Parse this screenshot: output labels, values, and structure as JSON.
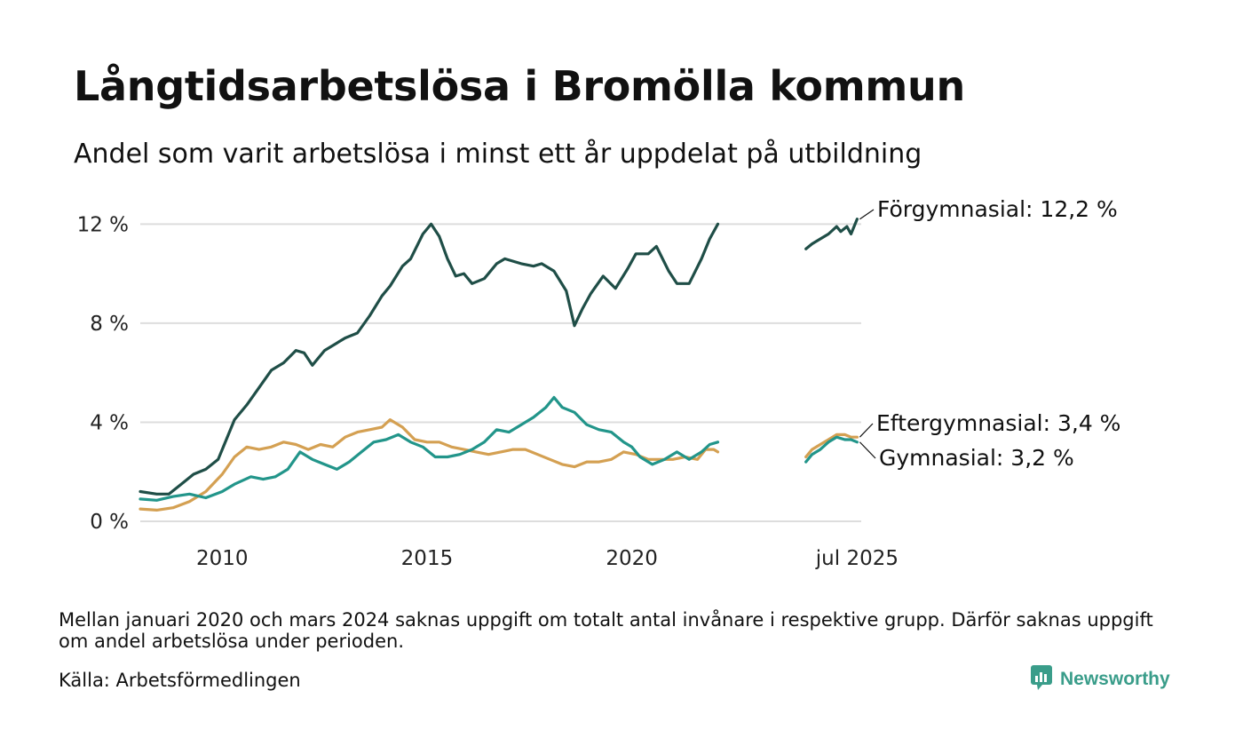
{
  "title": "Långtidsarbetslösa i Bromölla kommun",
  "subtitle": "Andel som varit arbetslösa i minst ett år uppdelat på utbildning",
  "note": "Mellan januari 2020 och mars 2024 saknas uppgift om totalt antal invånare i respektive grupp. Därför saknas uppgift om andel arbetslösa under perioden.",
  "source": "Källa: Arbetsförmedlingen",
  "brand": {
    "name": "Newsworthy",
    "icon": "newsworthy-logo-icon",
    "color": "#3a9d8a"
  },
  "chart_data": {
    "type": "line",
    "title": "Långtidsarbetslösa i Bromölla kommun",
    "subtitle": "Andel som varit arbetslösa i minst ett år uppdelat på utbildning",
    "xlabel": "",
    "ylabel": "",
    "ylim": [
      0,
      12.8
    ],
    "yticks": [
      0,
      4,
      8,
      12
    ],
    "ytick_labels": [
      "0 %",
      "4 %",
      "8 %",
      "12 %"
    ],
    "xlim": [
      2008.0,
      2025.6
    ],
    "xticks": [
      2010,
      2015,
      2020,
      2025.5
    ],
    "xtick_labels": [
      "2010",
      "2015",
      "2020",
      "jul 2025"
    ],
    "grid": true,
    "legend": "none (direct end labels at right)",
    "series": [
      {
        "name": "Förgymnasial",
        "end_label": "Förgymnasial: 12,2 %",
        "color": "#1f4e47",
        "segments": [
          [
            [
              2008.0,
              1.2
            ],
            [
              2008.4,
              1.1
            ],
            [
              2008.7,
              1.1
            ],
            [
              2009.0,
              1.5
            ],
            [
              2009.3,
              1.9
            ],
            [
              2009.6,
              2.1
            ],
            [
              2009.9,
              2.5
            ],
            [
              2010.1,
              3.3
            ],
            [
              2010.3,
              4.1
            ],
            [
              2010.6,
              4.7
            ],
            [
              2010.9,
              5.4
            ],
            [
              2011.2,
              6.1
            ],
            [
              2011.5,
              6.4
            ],
            [
              2011.8,
              6.9
            ],
            [
              2012.0,
              6.8
            ],
            [
              2012.2,
              6.3
            ],
            [
              2012.5,
              6.9
            ],
            [
              2012.8,
              7.2
            ],
            [
              2013.0,
              7.4
            ],
            [
              2013.3,
              7.6
            ],
            [
              2013.6,
              8.3
            ],
            [
              2013.9,
              9.1
            ],
            [
              2014.1,
              9.5
            ],
            [
              2014.4,
              10.3
            ],
            [
              2014.6,
              10.6
            ],
            [
              2014.9,
              11.6
            ],
            [
              2015.1,
              12.0
            ],
            [
              2015.3,
              11.5
            ],
            [
              2015.5,
              10.6
            ],
            [
              2015.7,
              9.9
            ],
            [
              2015.9,
              10.0
            ],
            [
              2016.1,
              9.6
            ],
            [
              2016.4,
              9.8
            ],
            [
              2016.7,
              10.4
            ],
            [
              2016.9,
              10.6
            ],
            [
              2017.1,
              10.5
            ],
            [
              2017.3,
              10.4
            ],
            [
              2017.6,
              10.3
            ],
            [
              2017.8,
              10.4
            ],
            [
              2018.1,
              10.1
            ],
            [
              2018.4,
              9.3
            ],
            [
              2018.6,
              7.9
            ],
            [
              2018.8,
              8.6
            ],
            [
              2019.0,
              9.2
            ],
            [
              2019.3,
              9.9
            ],
            [
              2019.6,
              9.4
            ],
            [
              2019.9,
              10.2
            ],
            [
              2020.1,
              10.8
            ],
            [
              2020.4,
              10.8
            ],
            [
              2020.6,
              11.1
            ],
            [
              2020.9,
              10.1
            ],
            [
              2021.1,
              9.6
            ],
            [
              2021.4,
              9.6
            ],
            [
              2021.7,
              10.6
            ],
            [
              2021.9,
              11.4
            ],
            [
              2022.1,
              12.0
            ]
          ],
          [
            [
              2024.25,
              11.0
            ],
            [
              2024.4,
              11.2
            ],
            [
              2024.6,
              11.4
            ],
            [
              2024.8,
              11.6
            ],
            [
              2025.0,
              11.9
            ],
            [
              2025.1,
              11.7
            ],
            [
              2025.25,
              11.9
            ],
            [
              2025.35,
              11.6
            ],
            [
              2025.5,
              12.2
            ]
          ]
        ]
      },
      {
        "name": "Eftergymnasial",
        "end_label": "Eftergymnasial:  3,4 %",
        "color": "#d4a052",
        "segments": [
          [
            [
              2008.0,
              0.5
            ],
            [
              2008.4,
              0.45
            ],
            [
              2008.8,
              0.55
            ],
            [
              2009.2,
              0.8
            ],
            [
              2009.6,
              1.2
            ],
            [
              2010.0,
              1.9
            ],
            [
              2010.3,
              2.6
            ],
            [
              2010.6,
              3.0
            ],
            [
              2010.9,
              2.9
            ],
            [
              2011.2,
              3.0
            ],
            [
              2011.5,
              3.2
            ],
            [
              2011.8,
              3.1
            ],
            [
              2012.1,
              2.9
            ],
            [
              2012.4,
              3.1
            ],
            [
              2012.7,
              3.0
            ],
            [
              2013.0,
              3.4
            ],
            [
              2013.3,
              3.6
            ],
            [
              2013.6,
              3.7
            ],
            [
              2013.9,
              3.8
            ],
            [
              2014.1,
              4.1
            ],
            [
              2014.4,
              3.8
            ],
            [
              2014.7,
              3.3
            ],
            [
              2015.0,
              3.2
            ],
            [
              2015.3,
              3.2
            ],
            [
              2015.6,
              3.0
            ],
            [
              2015.9,
              2.9
            ],
            [
              2016.2,
              2.8
            ],
            [
              2016.5,
              2.7
            ],
            [
              2016.8,
              2.8
            ],
            [
              2017.1,
              2.9
            ],
            [
              2017.4,
              2.9
            ],
            [
              2017.7,
              2.7
            ],
            [
              2018.0,
              2.5
            ],
            [
              2018.3,
              2.3
            ],
            [
              2018.6,
              2.2
            ],
            [
              2018.9,
              2.4
            ],
            [
              2019.2,
              2.4
            ],
            [
              2019.5,
              2.5
            ],
            [
              2019.8,
              2.8
            ],
            [
              2020.1,
              2.7
            ],
            [
              2020.4,
              2.5
            ],
            [
              2020.7,
              2.5
            ],
            [
              2021.0,
              2.5
            ],
            [
              2021.3,
              2.6
            ],
            [
              2021.6,
              2.5
            ],
            [
              2021.8,
              2.9
            ],
            [
              2022.0,
              2.9
            ],
            [
              2022.1,
              2.8
            ]
          ],
          [
            [
              2024.25,
              2.6
            ],
            [
              2024.4,
              2.9
            ],
            [
              2024.6,
              3.1
            ],
            [
              2024.8,
              3.3
            ],
            [
              2025.0,
              3.5
            ],
            [
              2025.2,
              3.5
            ],
            [
              2025.35,
              3.4
            ],
            [
              2025.5,
              3.4
            ]
          ]
        ]
      },
      {
        "name": "Gymnasial",
        "end_label": "Gymnasial:  3,2 %",
        "color": "#22958a",
        "segments": [
          [
            [
              2008.0,
              0.9
            ],
            [
              2008.4,
              0.85
            ],
            [
              2008.8,
              1.0
            ],
            [
              2009.2,
              1.1
            ],
            [
              2009.6,
              0.95
            ],
            [
              2010.0,
              1.2
            ],
            [
              2010.3,
              1.5
            ],
            [
              2010.7,
              1.8
            ],
            [
              2011.0,
              1.7
            ],
            [
              2011.3,
              1.8
            ],
            [
              2011.6,
              2.1
            ],
            [
              2011.9,
              2.8
            ],
            [
              2012.2,
              2.5
            ],
            [
              2012.5,
              2.3
            ],
            [
              2012.8,
              2.1
            ],
            [
              2013.1,
              2.4
            ],
            [
              2013.4,
              2.8
            ],
            [
              2013.7,
              3.2
            ],
            [
              2014.0,
              3.3
            ],
            [
              2014.3,
              3.5
            ],
            [
              2014.6,
              3.2
            ],
            [
              2014.9,
              3.0
            ],
            [
              2015.2,
              2.6
            ],
            [
              2015.5,
              2.6
            ],
            [
              2015.8,
              2.7
            ],
            [
              2016.1,
              2.9
            ],
            [
              2016.4,
              3.2
            ],
            [
              2016.7,
              3.7
            ],
            [
              2017.0,
              3.6
            ],
            [
              2017.3,
              3.9
            ],
            [
              2017.6,
              4.2
            ],
            [
              2017.9,
              4.6
            ],
            [
              2018.1,
              5.0
            ],
            [
              2018.3,
              4.6
            ],
            [
              2018.6,
              4.4
            ],
            [
              2018.9,
              3.9
            ],
            [
              2019.2,
              3.7
            ],
            [
              2019.5,
              3.6
            ],
            [
              2019.8,
              3.2
            ],
            [
              2020.0,
              3.0
            ],
            [
              2020.2,
              2.6
            ],
            [
              2020.5,
              2.3
            ],
            [
              2020.8,
              2.5
            ],
            [
              2021.1,
              2.8
            ],
            [
              2021.4,
              2.5
            ],
            [
              2021.7,
              2.8
            ],
            [
              2021.9,
              3.1
            ],
            [
              2022.1,
              3.2
            ]
          ],
          [
            [
              2024.25,
              2.4
            ],
            [
              2024.4,
              2.7
            ],
            [
              2024.6,
              2.9
            ],
            [
              2024.8,
              3.2
            ],
            [
              2025.0,
              3.4
            ],
            [
              2025.2,
              3.3
            ],
            [
              2025.35,
              3.3
            ],
            [
              2025.5,
              3.2
            ]
          ]
        ]
      }
    ]
  }
}
